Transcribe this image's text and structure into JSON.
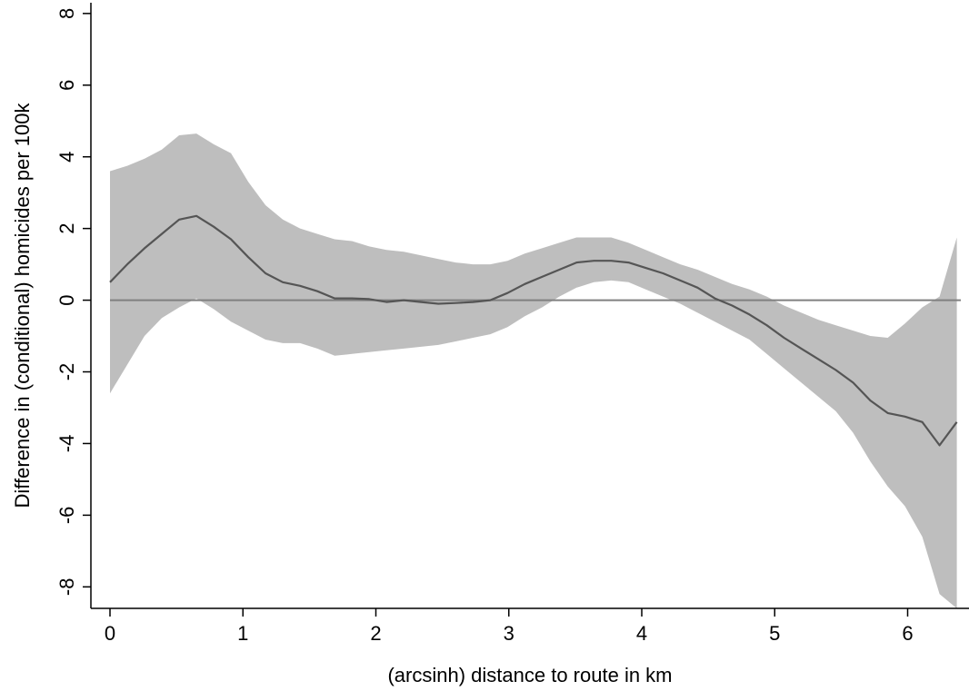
{
  "chart_data": {
    "type": "line",
    "title": "",
    "xlabel": "(arcsinh) distance to route in km",
    "ylabel": "Difference in (conditional) homicides per 100k",
    "xlim": [
      0,
      6.4
    ],
    "ylim": [
      -8.6,
      8.3
    ],
    "xticks": [
      0,
      1,
      2,
      3,
      4,
      5,
      6
    ],
    "yticks": [
      -8,
      -6,
      -4,
      -2,
      0,
      2,
      4,
      6,
      8
    ],
    "xtick_labels": [
      "0",
      "1",
      "2",
      "3",
      "4",
      "5",
      "6"
    ],
    "ytick_labels": [
      "-8",
      "-6",
      "-4",
      "-2",
      "0",
      "2",
      "4",
      "6",
      "8"
    ],
    "grid": false,
    "legend": "none",
    "reference_line_y": 0,
    "colors": {
      "estimate": "#555555",
      "band": "#bebebe",
      "reference": "#808080",
      "axis": "#000000"
    },
    "series": [
      {
        "x": [
          0,
          0.13,
          0.26,
          0.39,
          0.52,
          0.65,
          0.78,
          0.91,
          1.04,
          1.17,
          1.3,
          1.43,
          1.56,
          1.69,
          1.82,
          1.95,
          2.08,
          2.21,
          2.34,
          2.47,
          2.6,
          2.73,
          2.86,
          2.99,
          3.12,
          3.25,
          3.38,
          3.51,
          3.64,
          3.77,
          3.9,
          4.03,
          4.16,
          4.29,
          4.42,
          4.55,
          4.68,
          4.81,
          4.94,
          5.07,
          5.2,
          5.33,
          5.46,
          5.59,
          5.72,
          5.85,
          5.98,
          6.11,
          6.24,
          6.37
        ],
        "estimate": [
          0.5,
          1.0,
          1.45,
          1.85,
          2.25,
          2.35,
          2.05,
          1.7,
          1.2,
          0.75,
          0.5,
          0.4,
          0.25,
          0.05,
          0.05,
          0.03,
          -0.05,
          0.0,
          -0.05,
          -0.1,
          -0.08,
          -0.05,
          0.0,
          0.2,
          0.45,
          0.65,
          0.85,
          1.05,
          1.1,
          1.1,
          1.05,
          0.9,
          0.75,
          0.55,
          0.35,
          0.05,
          -0.15,
          -0.4,
          -0.7,
          -1.05,
          -1.35,
          -1.65,
          -1.95,
          -2.3,
          -2.8,
          -3.15,
          -3.25,
          -3.4,
          -4.05,
          -3.4
        ],
        "upper": [
          3.6,
          3.75,
          3.95,
          4.2,
          4.6,
          4.65,
          4.35,
          4.1,
          3.3,
          2.65,
          2.25,
          2.0,
          1.85,
          1.7,
          1.65,
          1.5,
          1.4,
          1.35,
          1.25,
          1.15,
          1.05,
          1.0,
          1.0,
          1.1,
          1.3,
          1.45,
          1.6,
          1.75,
          1.75,
          1.75,
          1.6,
          1.4,
          1.2,
          1.0,
          0.85,
          0.65,
          0.45,
          0.3,
          0.1,
          -0.15,
          -0.35,
          -0.55,
          -0.7,
          -0.85,
          -1.0,
          -1.05,
          -0.65,
          -0.2,
          0.1,
          1.75
        ],
        "lower": [
          -2.6,
          -1.8,
          -1.0,
          -0.5,
          -0.2,
          0.05,
          -0.25,
          -0.6,
          -0.85,
          -1.1,
          -1.2,
          -1.2,
          -1.35,
          -1.55,
          -1.5,
          -1.45,
          -1.4,
          -1.35,
          -1.3,
          -1.25,
          -1.15,
          -1.05,
          -0.95,
          -0.75,
          -0.45,
          -0.2,
          0.1,
          0.35,
          0.5,
          0.55,
          0.5,
          0.3,
          0.1,
          -0.1,
          -0.35,
          -0.6,
          -0.85,
          -1.1,
          -1.5,
          -1.9,
          -2.3,
          -2.7,
          -3.1,
          -3.7,
          -4.5,
          -5.2,
          -5.75,
          -6.6,
          -8.2,
          -8.6
        ]
      }
    ]
  }
}
